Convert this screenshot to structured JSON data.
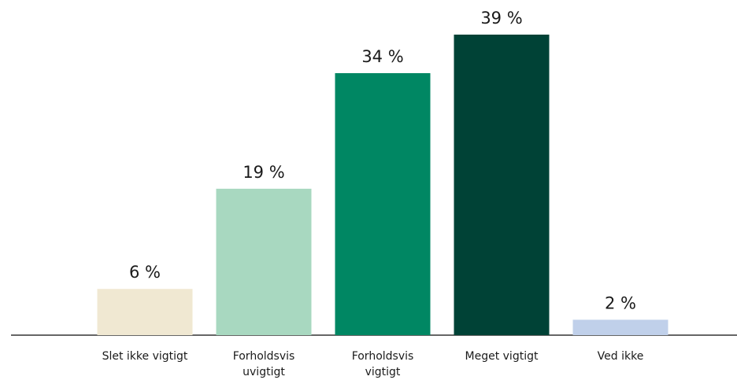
{
  "chart_data": {
    "type": "bar",
    "categories": [
      "Slet ikke vigtigt",
      "Forholdsvis uvigtigt",
      "Forholdsvis vigtigt",
      "Meget vigtigt",
      "Ved ikke"
    ],
    "values": [
      6,
      19,
      34,
      39,
      2
    ],
    "value_labels": [
      "6 %",
      "19 %",
      "34 %",
      "39 %",
      "2 %"
    ],
    "colors": [
      "#f0e8d2",
      "#a8d8c0",
      "#008763",
      "#004236",
      "#c0d0ea"
    ]
  }
}
